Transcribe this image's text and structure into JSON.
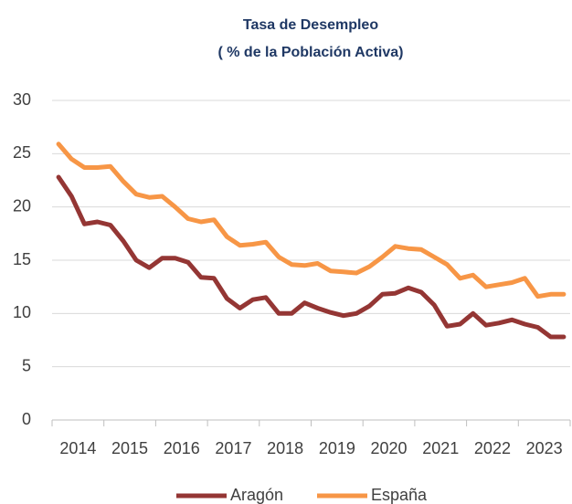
{
  "chart_data": {
    "type": "line",
    "title": "Tasa de Desempleo",
    "subtitle": "( % de la Población Activa)",
    "categories": [
      "2014",
      null,
      null,
      null,
      "2015",
      null,
      null,
      null,
      "2016",
      null,
      null,
      null,
      "2017",
      null,
      null,
      null,
      "2018",
      null,
      null,
      null,
      "2019",
      null,
      null,
      null,
      "2020",
      null,
      null,
      null,
      "2021",
      null,
      null,
      null,
      "2022",
      null,
      null,
      null,
      "2023",
      null,
      null,
      null
    ],
    "series": [
      {
        "name": "Aragón",
        "color": "#943634",
        "values": [
          22.8,
          21.0,
          18.4,
          18.6,
          18.3,
          16.8,
          15.0,
          14.3,
          15.2,
          15.2,
          14.8,
          13.4,
          13.3,
          11.4,
          10.5,
          11.3,
          11.5,
          10.0,
          10.0,
          11.0,
          10.5,
          10.1,
          9.8,
          10.0,
          10.7,
          11.8,
          11.9,
          12.4,
          12.0,
          10.8,
          8.8,
          9.0,
          10.0,
          8.9,
          9.1,
          9.4,
          9.0,
          8.7,
          7.8,
          7.8
        ]
      },
      {
        "name": "España",
        "color": "#f79646",
        "values": [
          25.9,
          24.5,
          23.7,
          23.7,
          23.8,
          22.4,
          21.2,
          20.9,
          21.0,
          20.0,
          18.9,
          18.6,
          18.8,
          17.2,
          16.4,
          16.5,
          16.7,
          15.3,
          14.6,
          14.5,
          14.7,
          14.0,
          13.9,
          13.8,
          14.4,
          15.3,
          16.3,
          16.1,
          16.0,
          15.3,
          14.6,
          13.3,
          13.6,
          12.5,
          12.7,
          12.9,
          13.3,
          11.6,
          11.8,
          11.8
        ]
      }
    ],
    "ylim": [
      0,
      30
    ],
    "yticks": [
      0,
      5,
      10,
      15,
      20,
      25,
      30
    ],
    "grid": true,
    "legend": "bottom"
  }
}
